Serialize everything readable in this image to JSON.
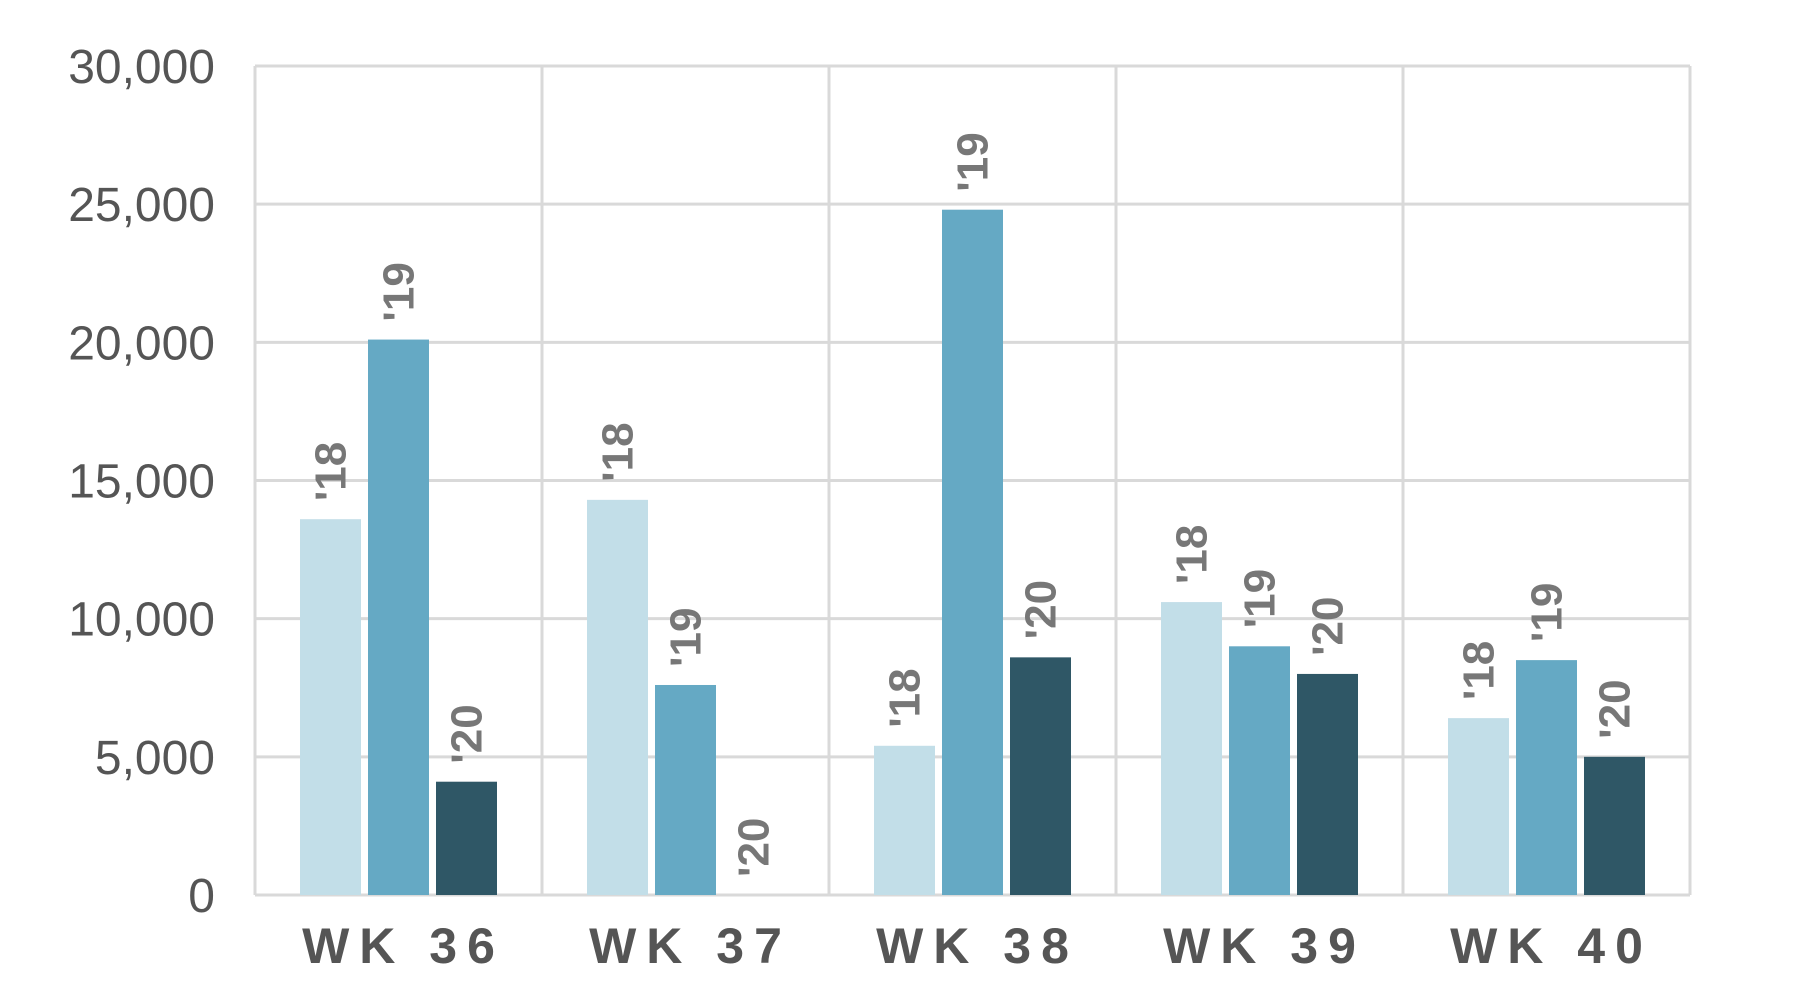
{
  "chart_data": {
    "type": "bar",
    "title": "",
    "xlabel": "",
    "ylabel": "",
    "categories": [
      "WK 36",
      "WK 37",
      "WK 38",
      "WK 39",
      "WK 40"
    ],
    "series": [
      {
        "name": "'18",
        "color": "#c2dee8",
        "values": [
          13600,
          14300,
          5400,
          10600,
          6400
        ]
      },
      {
        "name": "'19",
        "color": "#65a9c4",
        "values": [
          20100,
          7600,
          24800,
          9000,
          8500
        ]
      },
      {
        "name": "'20",
        "color": "#2f5766",
        "values": [
          4100,
          0,
          8600,
          8000,
          5000
        ]
      }
    ],
    "ylim": [
      0,
      30000
    ],
    "yticks": [
      0,
      5000,
      10000,
      15000,
      20000,
      25000,
      30000
    ],
    "ytick_labels": [
      "0",
      "5,000",
      "10,000",
      "15,000",
      "20,000",
      "25,000",
      "30,000"
    ],
    "grid": true,
    "legend": "none",
    "data_labels": "series name above each bar, rotated"
  }
}
